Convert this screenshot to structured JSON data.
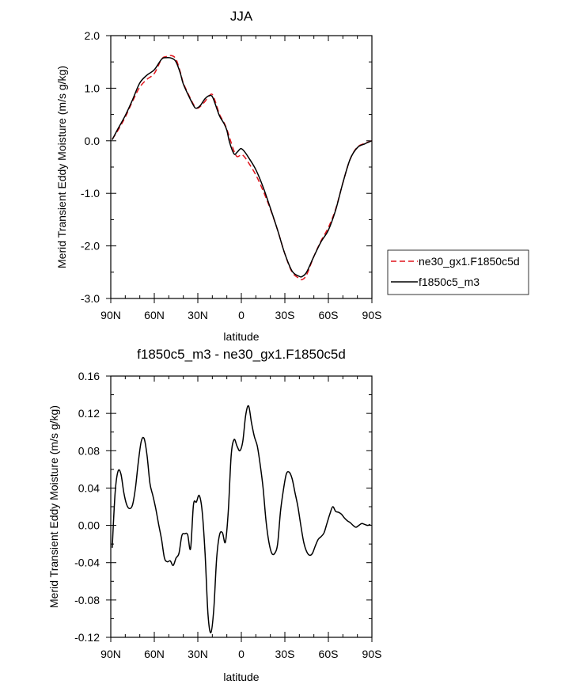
{
  "chart_data": [
    {
      "type": "line",
      "title": "JJA",
      "xlabel": "latitude",
      "ylabel": "Merid Transient Eddy Moisture (m/s g/kg)",
      "xlim": [
        90,
        -90
      ],
      "ylim": [
        -3,
        2
      ],
      "x_ticks": [
        90,
        60,
        30,
        0,
        -30,
        -60,
        -90
      ],
      "x_tick_labels": [
        "90N",
        "60N",
        "30N",
        "0",
        "30S",
        "60S",
        "90S"
      ],
      "y_ticks": [
        2,
        1,
        0,
        -1,
        -2,
        -3
      ],
      "y_tick_labels": [
        "2.0",
        "1.0",
        "0.0",
        "-1.0",
        "-2.0",
        "-3.0"
      ],
      "legend_position": "outside-right",
      "series": [
        {
          "name": "ne30_gx1.F1850c5d",
          "color": "#e0141c",
          "dash": "dashed",
          "x": [
            89,
            85,
            80,
            75,
            70,
            65,
            60,
            55,
            52,
            48,
            45,
            42,
            40,
            35,
            32,
            30,
            28,
            25,
            22,
            20,
            18,
            15,
            12,
            10,
            8,
            5,
            3,
            1,
            0,
            -2,
            -5,
            -10,
            -15,
            -20,
            -25,
            -30,
            -35,
            -40,
            -42,
            -45,
            -50,
            -55,
            -60,
            -65,
            -70,
            -75,
            -80,
            -85,
            -90
          ],
          "y": [
            0.03,
            0.2,
            0.45,
            0.75,
            1.02,
            1.17,
            1.28,
            1.55,
            1.6,
            1.62,
            1.55,
            1.3,
            1.1,
            0.8,
            0.65,
            0.62,
            0.66,
            0.75,
            0.86,
            0.88,
            0.75,
            0.5,
            0.35,
            0.22,
            0.05,
            -0.2,
            -0.3,
            -0.28,
            -0.26,
            -0.3,
            -0.42,
            -0.65,
            -0.95,
            -1.3,
            -1.7,
            -2.15,
            -2.5,
            -2.62,
            -2.64,
            -2.55,
            -2.2,
            -1.9,
            -1.65,
            -1.3,
            -0.8,
            -0.35,
            -0.12,
            -0.05,
            0.0
          ]
        },
        {
          "name": "f1850c5_m3",
          "color": "#000000",
          "dash": "solid",
          "x": [
            89,
            85,
            80,
            75,
            70,
            65,
            60,
            55,
            52,
            48,
            45,
            42,
            40,
            35,
            32,
            30,
            28,
            25,
            22,
            20,
            18,
            15,
            12,
            10,
            8,
            5,
            3,
            1,
            0,
            -2,
            -5,
            -10,
            -15,
            -20,
            -25,
            -30,
            -35,
            -40,
            -42,
            -45,
            -50,
            -55,
            -60,
            -65,
            -70,
            -75,
            -80,
            -85,
            -90
          ],
          "y": [
            0.02,
            0.23,
            0.48,
            0.78,
            1.1,
            1.25,
            1.35,
            1.55,
            1.58,
            1.57,
            1.5,
            1.28,
            1.08,
            0.78,
            0.63,
            0.63,
            0.68,
            0.8,
            0.86,
            0.84,
            0.7,
            0.47,
            0.33,
            0.2,
            -0.04,
            -0.25,
            -0.22,
            -0.16,
            -0.15,
            -0.2,
            -0.32,
            -0.55,
            -0.88,
            -1.28,
            -1.7,
            -2.15,
            -2.48,
            -2.58,
            -2.58,
            -2.5,
            -2.2,
            -1.92,
            -1.7,
            -1.32,
            -0.8,
            -0.35,
            -0.13,
            -0.06,
            0.0
          ]
        }
      ]
    },
    {
      "type": "line",
      "title": "f1850c5_m3 - ne30_gx1.F1850c5d",
      "xlabel": "latitude",
      "ylabel": "Merid Transient Eddy Moisture (m/s g/kg)",
      "xlim": [
        90,
        -90
      ],
      "ylim": [
        -0.12,
        0.16
      ],
      "x_ticks": [
        90,
        60,
        30,
        0,
        -30,
        -60,
        -90
      ],
      "x_tick_labels": [
        "90N",
        "60N",
        "30N",
        "0",
        "30S",
        "60S",
        "90S"
      ],
      "y_ticks": [
        0.16,
        0.12,
        0.08,
        0.04,
        0.0,
        -0.04,
        -0.08,
        -0.12
      ],
      "y_tick_labels": [
        "0.16",
        "0.12",
        "0.08",
        "0.04",
        "0.00",
        "-0.04",
        "-0.08",
        "-0.12"
      ],
      "series": [
        {
          "color": "#000000",
          "dash": "solid",
          "x": [
            89,
            87,
            85,
            83,
            81,
            79,
            77,
            75,
            73,
            71,
            69,
            67,
            65,
            63,
            61,
            59,
            57,
            55,
            53,
            51,
            49,
            47,
            45,
            43,
            41,
            39,
            37,
            35,
            33,
            31,
            29,
            27,
            25,
            23,
            21,
            19,
            17,
            15,
            13,
            11,
            9,
            7,
            5,
            3,
            1,
            -1,
            -3,
            -5,
            -7,
            -9,
            -11,
            -13,
            -15,
            -17,
            -19,
            -21,
            -23,
            -25,
            -27,
            -29,
            -31,
            -33,
            -35,
            -37,
            -39,
            -41,
            -43,
            -45,
            -47,
            -49,
            -51,
            -53,
            -55,
            -57,
            -59,
            -61,
            -63,
            -65,
            -67,
            -69,
            -71,
            -73,
            -75,
            -77,
            -79,
            -81,
            -83,
            -85,
            -87,
            -89
          ],
          "y": [
            -0.024,
            0.035,
            0.058,
            0.055,
            0.035,
            0.022,
            0.018,
            0.022,
            0.04,
            0.068,
            0.09,
            0.093,
            0.075,
            0.045,
            0.032,
            0.018,
            0.001,
            -0.015,
            -0.035,
            -0.039,
            -0.038,
            -0.043,
            -0.035,
            -0.03,
            -0.011,
            -0.009,
            -0.01,
            -0.025,
            0.022,
            0.025,
            0.032,
            0.015,
            -0.03,
            -0.095,
            -0.115,
            -0.09,
            -0.035,
            -0.01,
            -0.008,
            -0.018,
            0.015,
            0.075,
            0.092,
            0.085,
            0.08,
            0.09,
            0.118,
            0.128,
            0.11,
            0.095,
            0.085,
            0.065,
            0.04,
            0.005,
            -0.018,
            -0.03,
            -0.03,
            -0.02,
            0.015,
            0.038,
            0.055,
            0.057,
            0.05,
            0.035,
            0.02,
            0.0,
            -0.018,
            -0.028,
            -0.032,
            -0.03,
            -0.022,
            -0.015,
            -0.012,
            -0.008,
            0.002,
            0.012,
            0.02,
            0.015,
            0.014,
            0.012,
            0.008,
            0.005,
            0.003,
            0.0,
            -0.002,
            0.0,
            0.002,
            0.001,
            0.0,
            0.001
          ]
        }
      ]
    }
  ]
}
